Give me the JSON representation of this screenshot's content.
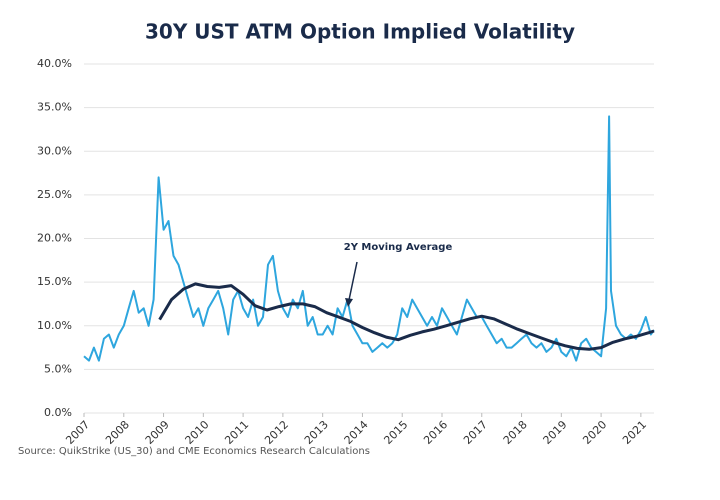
{
  "chart_data": {
    "type": "line",
    "title": "30Y UST ATM Option Implied Volatility",
    "source": "Source: QuikStrike (US_30) and CME Economics Research Calculations",
    "annotation": "2Y Moving Average",
    "xlim": [
      2007,
      2021.33
    ],
    "xticks": [
      2007,
      2008,
      2009,
      2010,
      2011,
      2012,
      2013,
      2014,
      2015,
      2016,
      2017,
      2018,
      2019,
      2020,
      2021
    ],
    "ylim": [
      0,
      40
    ],
    "yticks": [
      {
        "value": 0,
        "label": "0.0%"
      },
      {
        "value": 5,
        "label": "5.0%"
      },
      {
        "value": 10,
        "label": "10.0%"
      },
      {
        "value": 15,
        "label": "15.0%"
      },
      {
        "value": 20,
        "label": "20.0%"
      },
      {
        "value": 25,
        "label": "25.0%"
      },
      {
        "value": 30,
        "label": "30.0%"
      },
      {
        "value": 35,
        "label": "35.0%"
      },
      {
        "value": 40,
        "label": "40.0%"
      }
    ],
    "grid": true,
    "series": [
      {
        "color": "#2ea6de",
        "width": 2,
        "x": [
          2007,
          2007.125,
          2007.25,
          2007.375,
          2007.5,
          2007.625,
          2007.75,
          2007.875,
          2008,
          2008.125,
          2008.25,
          2008.375,
          2008.5,
          2008.625,
          2008.75,
          2008.875,
          2009,
          2009.125,
          2009.25,
          2009.375,
          2009.5,
          2009.625,
          2009.75,
          2009.875,
          2010,
          2010.125,
          2010.25,
          2010.375,
          2010.5,
          2010.625,
          2010.75,
          2010.875,
          2011,
          2011.125,
          2011.25,
          2011.375,
          2011.5,
          2011.625,
          2011.75,
          2011.875,
          2012,
          2012.125,
          2012.25,
          2012.375,
          2012.5,
          2012.625,
          2012.75,
          2012.875,
          2013,
          2013.125,
          2013.25,
          2013.375,
          2013.5,
          2013.625,
          2013.75,
          2013.875,
          2014,
          2014.125,
          2014.25,
          2014.375,
          2014.5,
          2014.625,
          2014.75,
          2014.875,
          2015,
          2015.125,
          2015.25,
          2015.375,
          2015.5,
          2015.625,
          2015.75,
          2015.875,
          2016,
          2016.125,
          2016.25,
          2016.375,
          2016.5,
          2016.625,
          2016.75,
          2016.875,
          2017,
          2017.125,
          2017.25,
          2017.375,
          2017.5,
          2017.625,
          2017.75,
          2017.875,
          2018,
          2018.125,
          2018.25,
          2018.375,
          2018.5,
          2018.625,
          2018.75,
          2018.875,
          2019,
          2019.125,
          2019.25,
          2019.375,
          2019.5,
          2019.625,
          2019.75,
          2019.875,
          2020,
          2020.125,
          2020.2,
          2020.25,
          2020.375,
          2020.5,
          2020.625,
          2020.75,
          2020.875,
          2021,
          2021.125,
          2021.25,
          2021.33
        ],
        "values": [
          6.5,
          6,
          7.5,
          6,
          8.5,
          9,
          7.5,
          9,
          10,
          12,
          14,
          11.5,
          12,
          10,
          13,
          27,
          21,
          22,
          18,
          17,
          15,
          13,
          11,
          12,
          10,
          12,
          13,
          14,
          12,
          9,
          13,
          14,
          12,
          11,
          13,
          10,
          11,
          17,
          18,
          14,
          12,
          11,
          13,
          12,
          14,
          10,
          11,
          9,
          9,
          10,
          9,
          12,
          11,
          13,
          10,
          9,
          8,
          8,
          7,
          7.5,
          8,
          7.5,
          8,
          9,
          12,
          11,
          13,
          12,
          11,
          10,
          11,
          10,
          12,
          11,
          10,
          9,
          11,
          13,
          12,
          11,
          11,
          10,
          9,
          8,
          8.5,
          7.5,
          7.5,
          8,
          8.5,
          9,
          8,
          7.5,
          8,
          7,
          7.5,
          8.5,
          7,
          6.5,
          7.5,
          6,
          8,
          8.5,
          7.5,
          7,
          6.5,
          12,
          34,
          14,
          10,
          9,
          8.5,
          9,
          8.5,
          9.5,
          11,
          9,
          9.5
        ]
      },
      {
        "color": "#1a2b4a",
        "width": 3,
        "x": [
          2008.9,
          2009.2,
          2009.5,
          2009.8,
          2010.1,
          2010.4,
          2010.7,
          2011.0,
          2011.3,
          2011.6,
          2011.9,
          2012.2,
          2012.5,
          2012.8,
          2013.1,
          2013.4,
          2013.7,
          2014.0,
          2014.3,
          2014.6,
          2014.9,
          2015.2,
          2015.5,
          2015.8,
          2016.1,
          2016.4,
          2016.7,
          2017.0,
          2017.3,
          2017.6,
          2017.9,
          2018.2,
          2018.5,
          2018.8,
          2019.1,
          2019.4,
          2019.7,
          2020.0,
          2020.3,
          2020.6,
          2020.9,
          2021.2,
          2021.33
        ],
        "values": [
          10.7,
          13,
          14.2,
          14.8,
          14.5,
          14.4,
          14.6,
          13.6,
          12.3,
          11.8,
          12.2,
          12.5,
          12.5,
          12.2,
          11.5,
          11,
          10.5,
          9.8,
          9.2,
          8.7,
          8.4,
          8.9,
          9.3,
          9.6,
          10,
          10.4,
          10.8,
          11.1,
          10.8,
          10.2,
          9.6,
          9.1,
          8.6,
          8.1,
          7.7,
          7.4,
          7.3,
          7.5,
          8.1,
          8.5,
          8.8,
          9.2,
          9.4
        ]
      }
    ]
  }
}
